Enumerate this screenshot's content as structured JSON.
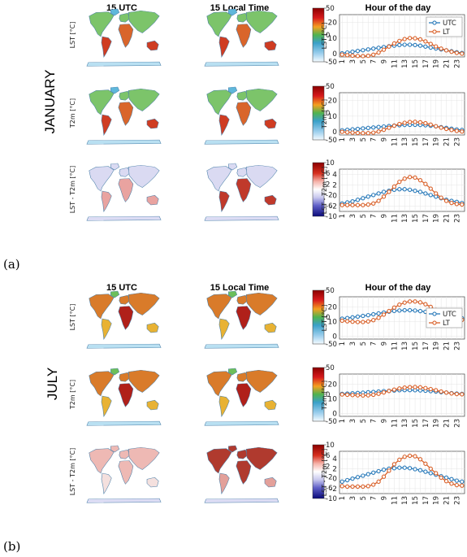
{
  "headers": {
    "utc": "15 UTC",
    "local": "15 Local Time",
    "hour": "Hour of the day"
  },
  "panels": [
    {
      "label": "(a)",
      "month": "JANUARY",
      "rows": [
        {
          "label": "LST [°C]",
          "cb_ticks": [
            "50",
            "0",
            "-50"
          ],
          "cb_kind": "temp"
        },
        {
          "label": "T2m [°C]",
          "cb_ticks": [
            "50",
            "0",
            "-50"
          ],
          "cb_kind": "temp"
        },
        {
          "label": "LST - T2m [°C]",
          "cb_ticks": [
            "10",
            "6",
            "2",
            "-2",
            "-6",
            "-10"
          ],
          "cb_kind": "diff"
        }
      ]
    },
    {
      "label": "(b)",
      "month": "JULY",
      "rows": [
        {
          "label": "LST [°C]",
          "cb_ticks": [
            "50",
            "0",
            "-50"
          ],
          "cb_kind": "temp"
        },
        {
          "label": "T2m [°C]",
          "cb_ticks": [
            "50",
            "0",
            "-50"
          ],
          "cb_kind": "temp"
        },
        {
          "label": "LST - T2m [°C]",
          "cb_ticks": [
            "10",
            "6",
            "2",
            "-2",
            "-6",
            "-10"
          ],
          "cb_kind": "diff"
        }
      ]
    }
  ],
  "colors": {
    "utc": "#2b7bba",
    "lt": "#d9622b"
  },
  "chart_data": [
    {
      "type": "line",
      "panel": "a",
      "ylabel": "LST [°C]",
      "ylim": [
        -2,
        25
      ],
      "yticks": [
        0,
        10,
        20
      ],
      "x": [
        1,
        2,
        3,
        4,
        5,
        6,
        7,
        8,
        9,
        10,
        11,
        12,
        13,
        14,
        15,
        16,
        17,
        18,
        19,
        20,
        21,
        22,
        23,
        24
      ],
      "legend": "top-right",
      "series": [
        {
          "name": "UTC",
          "values": [
            0.3,
            0.8,
            1.3,
            1.8,
            2.3,
            2.8,
            3.3,
            3.8,
            4.3,
            4.8,
            5.2,
            5.6,
            5.8,
            5.8,
            5.6,
            5.2,
            4.6,
            4.0,
            3.4,
            2.8,
            2.2,
            1.6,
            1.0,
            0.5
          ]
        },
        {
          "name": "LT",
          "values": [
            -0.5,
            -0.9,
            -1.2,
            -1.4,
            -1.5,
            -1.3,
            -0.6,
            0.8,
            2.6,
            4.6,
            6.6,
            8.2,
            9.4,
            10.0,
            9.9,
            9.2,
            7.9,
            6.3,
            4.7,
            3.3,
            2.2,
            1.3,
            0.6,
            0.1
          ]
        }
      ]
    },
    {
      "type": "line",
      "panel": "a",
      "ylabel": "T2m [°C]",
      "ylim": [
        -2,
        25
      ],
      "yticks": [
        0,
        10,
        20
      ],
      "x": [
        1,
        2,
        3,
        4,
        5,
        6,
        7,
        8,
        9,
        10,
        11,
        12,
        13,
        14,
        15,
        16,
        17,
        18,
        19,
        20,
        21,
        22,
        23,
        24
      ],
      "series": [
        {
          "name": "UTC",
          "values": [
            1.0,
            1.3,
            1.6,
            1.9,
            2.2,
            2.5,
            2.8,
            3.1,
            3.4,
            3.7,
            4.0,
            4.2,
            4.4,
            4.5,
            4.5,
            4.4,
            4.2,
            3.9,
            3.5,
            3.0,
            2.5,
            2.0,
            1.5,
            1.2
          ]
        },
        {
          "name": "LT",
          "values": [
            0.0,
            -0.3,
            -0.5,
            -0.7,
            -0.8,
            -0.8,
            -0.5,
            0.2,
            1.3,
            2.6,
            3.9,
            5.0,
            5.8,
            6.3,
            6.4,
            6.1,
            5.5,
            4.6,
            3.6,
            2.7,
            1.9,
            1.2,
            0.6,
            0.2
          ]
        }
      ]
    },
    {
      "type": "line",
      "panel": "a",
      "ylabel": "LST - T2m [°C]",
      "ylim": [
        -3,
        5
      ],
      "yticks": [
        -2,
        0,
        2,
        4
      ],
      "x": [
        1,
        2,
        3,
        4,
        5,
        6,
        7,
        8,
        9,
        10,
        11,
        12,
        13,
        14,
        15,
        16,
        17,
        18,
        19,
        20,
        21,
        22,
        23,
        24
      ],
      "series": [
        {
          "name": "UTC",
          "values": [
            -1.5,
            -1.3,
            -1.1,
            -0.8,
            -0.5,
            -0.2,
            0.1,
            0.4,
            0.7,
            0.9,
            1.1,
            1.2,
            1.2,
            1.1,
            0.9,
            0.7,
            0.4,
            0.1,
            -0.2,
            -0.5,
            -0.8,
            -1.0,
            -1.2,
            -1.4
          ]
        },
        {
          "name": "LT",
          "values": [
            -1.8,
            -1.8,
            -1.8,
            -1.8,
            -1.8,
            -1.7,
            -1.5,
            -1.0,
            -0.2,
            0.7,
            1.7,
            2.6,
            3.2,
            3.5,
            3.4,
            2.9,
            2.2,
            1.3,
            0.4,
            -0.4,
            -1.0,
            -1.4,
            -1.6,
            -1.7
          ]
        }
      ]
    },
    {
      "type": "line",
      "panel": "b",
      "ylabel": "LST [°C]",
      "ylim": [
        -2,
        27
      ],
      "yticks": [
        0,
        10,
        20
      ],
      "x": [
        1,
        2,
        3,
        4,
        5,
        6,
        7,
        8,
        9,
        10,
        11,
        12,
        13,
        14,
        15,
        16,
        17,
        18,
        19,
        20,
        21,
        22,
        23,
        24
      ],
      "legend": "lower-right",
      "series": [
        {
          "name": "UTC",
          "values": [
            12.0,
            12.4,
            12.9,
            13.4,
            13.9,
            14.4,
            15.0,
            15.6,
            16.2,
            16.8,
            17.3,
            17.6,
            17.8,
            17.8,
            17.6,
            17.2,
            16.7,
            16.1,
            15.5,
            14.8,
            14.1,
            13.4,
            12.8,
            12.3
          ]
        },
        {
          "name": "LT",
          "values": [
            10.6,
            10.2,
            9.9,
            9.7,
            9.7,
            10.1,
            11.0,
            12.6,
            14.8,
            17.2,
            19.6,
            21.6,
            23.0,
            23.8,
            23.8,
            23.2,
            21.9,
            20.1,
            18.0,
            16.0,
            14.3,
            12.9,
            11.9,
            11.2
          ]
        }
      ]
    },
    {
      "type": "line",
      "panel": "b",
      "ylabel": "T2m [°C]",
      "ylim": [
        -2,
        27
      ],
      "yticks": [
        0,
        10,
        20
      ],
      "x": [
        1,
        2,
        3,
        4,
        5,
        6,
        7,
        8,
        9,
        10,
        11,
        12,
        13,
        14,
        15,
        16,
        17,
        18,
        19,
        20,
        21,
        22,
        23,
        24
      ],
      "series": [
        {
          "name": "UTC",
          "values": [
            13.4,
            13.6,
            13.8,
            14.0,
            14.2,
            14.5,
            14.7,
            15.0,
            15.3,
            15.5,
            15.7,
            15.9,
            16.0,
            16.0,
            15.9,
            15.8,
            15.6,
            15.3,
            15.0,
            14.6,
            14.3,
            13.9,
            13.6,
            13.4
          ]
        },
        {
          "name": "LT",
          "values": [
            13.0,
            12.8,
            12.6,
            12.4,
            12.3,
            12.4,
            12.8,
            13.5,
            14.4,
            15.4,
            16.3,
            17.1,
            17.7,
            18.0,
            18.1,
            17.9,
            17.4,
            16.7,
            15.9,
            15.0,
            14.3,
            13.7,
            13.3,
            13.1
          ]
        }
      ]
    },
    {
      "type": "line",
      "panel": "b",
      "ylabel": "LST - T2m [°C]",
      "ylim": [
        -3,
        5.5
      ],
      "yticks": [
        -2,
        0,
        2,
        4
      ],
      "x": [
        1,
        2,
        3,
        4,
        5,
        6,
        7,
        8,
        9,
        10,
        11,
        12,
        13,
        14,
        15,
        16,
        17,
        18,
        19,
        20,
        21,
        22,
        23,
        24
      ],
      "series": [
        {
          "name": "UTC",
          "values": [
            -0.6,
            -0.3,
            0.0,
            0.3,
            0.6,
            0.9,
            1.2,
            1.5,
            1.8,
            2.0,
            2.1,
            2.2,
            2.2,
            2.1,
            1.9,
            1.7,
            1.4,
            1.1,
            0.8,
            0.5,
            0.2,
            -0.1,
            -0.4,
            -0.6
          ]
        },
        {
          "name": "LT",
          "values": [
            -1.5,
            -1.6,
            -1.6,
            -1.6,
            -1.6,
            -1.5,
            -1.2,
            -0.6,
            0.4,
            1.6,
            2.9,
            3.8,
            4.4,
            4.6,
            4.5,
            3.9,
            3.0,
            2.0,
            1.1,
            0.2,
            -0.5,
            -1.0,
            -1.3,
            -1.4
          ]
        }
      ]
    }
  ]
}
